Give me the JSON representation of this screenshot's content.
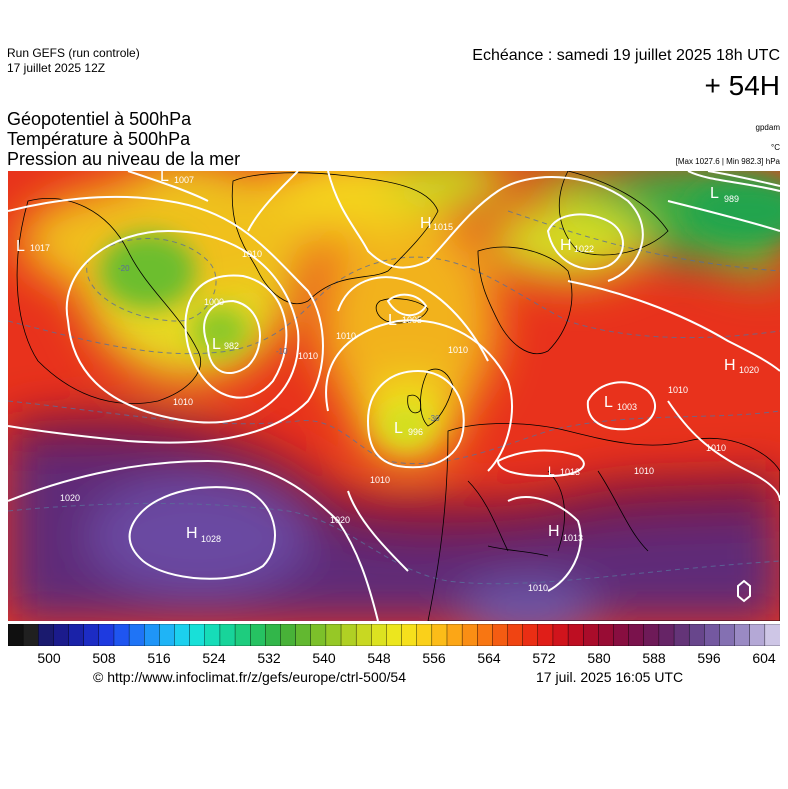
{
  "header": {
    "run": "Run GEFS (run controle)",
    "run_date": "17 juillet 2025 12Z",
    "valid": "Echéance : samedi 19 juillet 2025 18h UTC",
    "lead": "+ 54H"
  },
  "titles": {
    "line1": "Géopotentiel à 500hPa",
    "line2": "Température à 500hPa",
    "line3": "Pression au niveau de la mer"
  },
  "units": {
    "geopotential": "gpdam",
    "temperature": "°C",
    "pressure_stats": "[Max 1027.6 | Min 982.3] hPa"
  },
  "pressure_centers": [
    {
      "type": "L",
      "value": "1007"
    },
    {
      "type": "L",
      "value": "1017"
    },
    {
      "type": "L",
      "value": "982"
    },
    {
      "type": "H",
      "value": "1015"
    },
    {
      "type": "L",
      "value": "1005"
    },
    {
      "type": "L",
      "value": "996"
    },
    {
      "type": "H",
      "value": "1022"
    },
    {
      "type": "L",
      "value": "989"
    },
    {
      "type": "H",
      "value": "1020"
    },
    {
      "type": "L",
      "value": "1003"
    },
    {
      "type": "L",
      "value": "1013"
    },
    {
      "type": "H",
      "value": "1013"
    },
    {
      "type": "H",
      "value": "1028"
    }
  ],
  "isobar_labels": {
    "l1000": "1000",
    "l1010a": "1010",
    "l1010b": "1010",
    "l1010c": "1010",
    "l1010d": "1010",
    "l1010e": "1010",
    "l1010f": "1010",
    "l1010g": "1010",
    "l1010h": "1010",
    "l1010i": "1010",
    "l1010j": "1010",
    "l1020a": "1020",
    "l1020b": "1020",
    "iso_m20": "-20",
    "iso_m10": "-10",
    "iso_m30": "-30"
  },
  "colorbar": {
    "ticks": [
      "500",
      "508",
      "516",
      "524",
      "532",
      "540",
      "548",
      "556",
      "564",
      "572",
      "580",
      "588",
      "596",
      "604"
    ],
    "colors": [
      "#101010",
      "#202020",
      "#1a1a6e",
      "#1b1b8c",
      "#1a22a8",
      "#1c2cc4",
      "#1e3ae0",
      "#1f55f0",
      "#1f74f6",
      "#1f95f8",
      "#1fb4f6",
      "#1cd0ee",
      "#18e0d8",
      "#16dcb8",
      "#18d49a",
      "#1ecc7e",
      "#26c262",
      "#32b64a",
      "#48b238",
      "#62b830",
      "#7cc02a",
      "#96c826",
      "#b0d024",
      "#c8d822",
      "#dce220",
      "#ece61e",
      "#f6e01c",
      "#fad01a",
      "#fcbc18",
      "#fca616",
      "#fa8e14",
      "#f87612",
      "#f45c12",
      "#f04412",
      "#ea2e14",
      "#e01e18",
      "#d0141c",
      "#be0e22",
      "#aa0c2a",
      "#980c34",
      "#880e40",
      "#7a124c",
      "#6e1a58",
      "#662466",
      "#643478",
      "#68468c",
      "#7458a0",
      "#8470b2",
      "#9a8ac4",
      "#b4a8d6",
      "#cec6e6"
    ]
  },
  "footer": {
    "copyright": "© http://www.infoclimat.fr/z/gefs/europe/ctrl-500/54",
    "generated": "17 juil. 2025 16:05 UTC"
  },
  "colors": {
    "isobar": "#ffffff",
    "isotherm": "#5a6e9a",
    "coast": "#000000"
  }
}
